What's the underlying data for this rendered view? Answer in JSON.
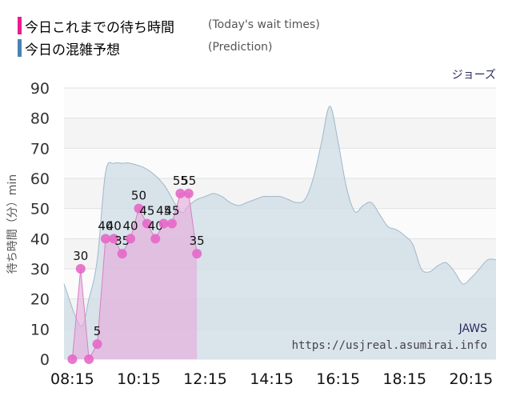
{
  "legend": {
    "actual": {
      "label": "今日これまでの待ち時間",
      "en": "(Today's wait times)",
      "color": "#ec1c8c"
    },
    "predicted": {
      "label": "今日の混雑予想",
      "en": "(Prediction)",
      "color": "#4a82b4"
    }
  },
  "chart_data": {
    "type": "area",
    "title": "ジョーズ",
    "watermark_name": "JAWS",
    "watermark_url": "https://usjreal.asumirai.info",
    "ylabel": "待ち時間（分）min",
    "ylim": [
      0,
      90
    ],
    "yticks": [
      0,
      10,
      20,
      30,
      40,
      50,
      60,
      70,
      80,
      90
    ],
    "xlim": [
      "08:00",
      "21:00"
    ],
    "xticks": [
      "08:15",
      "10:15",
      "12:15",
      "14:15",
      "16:15",
      "18:15",
      "20:15"
    ],
    "grid": "horizontal",
    "series": [
      {
        "kind": "prediction",
        "x": [
          "08:00",
          "08:30",
          "08:45",
          "09:00",
          "09:15",
          "09:30",
          "09:45",
          "10:00",
          "10:30",
          "11:00",
          "11:30",
          "11:45",
          "12:00",
          "12:15",
          "12:30",
          "12:45",
          "13:00",
          "13:15",
          "13:30",
          "13:45",
          "14:00",
          "14:15",
          "14:30",
          "14:45",
          "15:00",
          "15:15",
          "15:30",
          "15:45",
          "16:00",
          "16:15",
          "16:30",
          "16:45",
          "17:00",
          "17:15",
          "17:30",
          "17:45",
          "18:00",
          "18:15",
          "18:30",
          "18:45",
          "19:00",
          "19:15",
          "19:30",
          "19:45",
          "20:00",
          "20:15",
          "20:30",
          "20:45",
          "21:00"
        ],
        "values": [
          25,
          11,
          20,
          33,
          62,
          65,
          65,
          65,
          63,
          58,
          49,
          51,
          53,
          54,
          55,
          54,
          52,
          51,
          52,
          53,
          54,
          54,
          54,
          53,
          52,
          53,
          60,
          72,
          84,
          72,
          57,
          49,
          51,
          52,
          48,
          44,
          43,
          41,
          38,
          30,
          29,
          31,
          32,
          29,
          25,
          27,
          30,
          33,
          33
        ]
      },
      {
        "kind": "actual",
        "x": [
          "08:15",
          "08:30",
          "08:45",
          "09:00",
          "09:15",
          "09:30",
          "09:45",
          "10:00",
          "10:15",
          "10:30",
          "10:45",
          "11:00",
          "11:15",
          "11:30",
          "11:45",
          "12:00",
          "12:15",
          "12:30",
          "12:45",
          "13:00",
          "13:15",
          "13:30",
          "13:45",
          "14:00",
          "14:15",
          "14:30",
          "14:45",
          "15:00",
          "15:15"
        ],
        "values": [
          0,
          30,
          0,
          5,
          40,
          40,
          35,
          40,
          50,
          45,
          40,
          45,
          45,
          55,
          55,
          35,
          null,
          null,
          null,
          null,
          null,
          null,
          null,
          null,
          null,
          null,
          null,
          null,
          null
        ]
      }
    ]
  }
}
